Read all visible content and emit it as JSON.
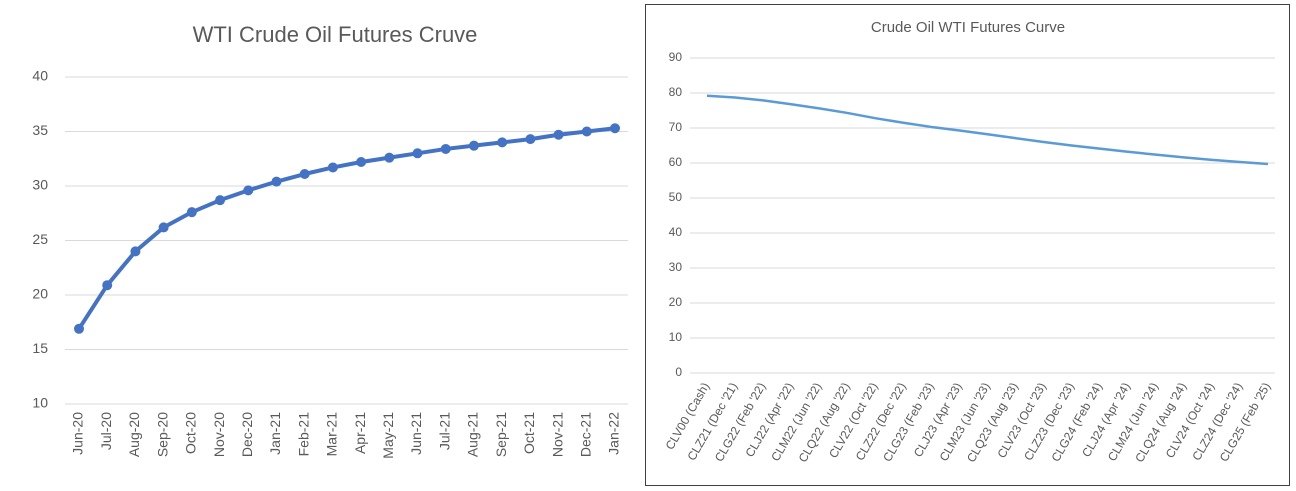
{
  "chart_data": [
    {
      "type": "line",
      "title": "WTI Crude Oil Futures Cruve",
      "categories": [
        "Jun-20",
        "Jul-20",
        "Aug-20",
        "Sep-20",
        "Oct-20",
        "Nov-20",
        "Dec-20",
        "Jan-21",
        "Feb-21",
        "Mar-21",
        "Apr-21",
        "May-21",
        "Jun-21",
        "Jul-21",
        "Aug-21",
        "Sep-21",
        "Oct-21",
        "Nov-21",
        "Dec-21",
        "Jan-22"
      ],
      "series": [
        {
          "color": "#4472c4",
          "values": [
            16.9,
            20.9,
            24.0,
            26.2,
            27.6,
            28.7,
            29.6,
            30.4,
            31.1,
            31.7,
            32.2,
            32.6,
            33.0,
            33.4,
            33.7,
            34.0,
            34.3,
            34.7,
            35.0,
            35.3
          ]
        }
      ],
      "markers": true,
      "ylim": [
        10,
        40
      ],
      "yticks": [
        10,
        15,
        20,
        25,
        30,
        35,
        40
      ],
      "grid": true
    },
    {
      "type": "line",
      "title": "Crude Oil WTI Futures Curve",
      "categories": [
        "CLV00 (Cash)",
        "CLZ21 (Dec '21)",
        "CLG22 (Feb '22)",
        "CLJ22 (Apr '22)",
        "CLM22 (Jun '22)",
        "CLQ22 (Aug '22)",
        "CLV22 (Oct '22)",
        "CLZ22 (Dec '22)",
        "CLG23 (Feb '23)",
        "CLJ23 (Apr '23)",
        "CLM23 (Jun '23)",
        "CLQ23 (Aug '23)",
        "CLV23 (Oct '23)",
        "CLZ23 (Dec '23)",
        "CLG24 (Feb '24)",
        "CLJ24 (Apr '24)",
        "CLM24 (Jun '24)",
        "CLQ24 (Aug '24)",
        "CLV24 (Oct '24)",
        "CLZ24 (Dec '24)",
        "CLG25 (Feb '25)"
      ],
      "series": [
        {
          "color": "#5b9bd5",
          "values": [
            79.2,
            78.7,
            77.9,
            76.8,
            75.6,
            74.3,
            72.8,
            71.5,
            70.3,
            69.3,
            68.2,
            67.1,
            66.0,
            65.0,
            64.1,
            63.2,
            62.4,
            61.6,
            60.9,
            60.3,
            59.7
          ]
        }
      ],
      "markers": false,
      "ylim": [
        0,
        90
      ],
      "yticks": [
        0,
        10,
        20,
        30,
        40,
        50,
        60,
        70,
        80,
        90
      ],
      "grid": true
    }
  ]
}
